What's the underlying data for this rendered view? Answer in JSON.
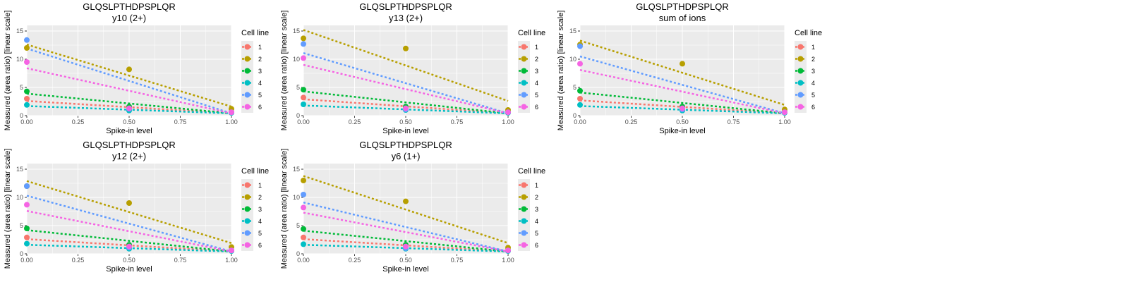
{
  "colors": {
    "1": "#F8766D",
    "2": "#B79F00",
    "3": "#00BA38",
    "4": "#00BFC4",
    "5": "#619CFF",
    "6": "#F564E3",
    "panel_background": "#EBEBEB",
    "grid": "#FFFFFF"
  },
  "chart_data": [
    {
      "type": "scatter",
      "title": "GLQSLPTHDPSPLQR",
      "subtitle": "y10 (2+)",
      "xlabel": "Spike-in level",
      "ylabel": "Measured (area ratio) [linear scale]",
      "xlim": [
        0,
        1
      ],
      "ylim": [
        0,
        16
      ],
      "xticks": [
        "0.00",
        "0.25",
        "0.50",
        "0.75",
        "1.00"
      ],
      "yticks": [
        "0",
        "5",
        "10",
        "15"
      ],
      "legend_title": "Cell line",
      "legend_position": "right",
      "series": [
        {
          "name": "1",
          "points": [
            [
              0,
              3.0
            ],
            [
              0.5,
              1.3
            ],
            [
              1,
              0.6
            ]
          ],
          "fit": [
            2.6,
            0.4
          ]
        },
        {
          "name": "2",
          "points": [
            [
              0,
              12.0
            ],
            [
              0.5,
              8.2
            ],
            [
              1,
              1.2
            ]
          ],
          "fit": [
            12.6,
            1.6
          ]
        },
        {
          "name": "3",
          "points": [
            [
              0,
              4.3
            ],
            [
              0.5,
              1.6
            ],
            [
              1,
              0.6
            ]
          ],
          "fit": [
            3.9,
            0.4
          ]
        },
        {
          "name": "4",
          "points": [
            [
              0,
              1.9
            ],
            [
              0.5,
              0.9
            ],
            [
              1,
              0.5
            ]
          ],
          "fit": [
            1.7,
            0.4
          ]
        },
        {
          "name": "5",
          "points": [
            [
              0,
              13.4
            ],
            [
              0.5,
              1.2
            ],
            [
              1,
              0.6
            ]
          ],
          "fit": [
            11.9,
            0.4
          ]
        },
        {
          "name": "6",
          "points": [
            [
              0,
              9.5
            ],
            [
              0.5,
              1.3
            ],
            [
              1,
              0.6
            ]
          ],
          "fit": [
            8.4,
            0.4
          ]
        }
      ]
    },
    {
      "type": "scatter",
      "title": "GLQSLPTHDPSPLQR",
      "subtitle": "y13 (2+)",
      "xlabel": "Spike-in level",
      "ylabel": "Measured (area ratio) [linear scale]",
      "xlim": [
        0,
        1
      ],
      "ylim": [
        0,
        16
      ],
      "xticks": [
        "0.00",
        "0.25",
        "0.50",
        "0.75",
        "1.00"
      ],
      "yticks": [
        "0",
        "5",
        "10",
        "15"
      ],
      "legend_title": "Cell line",
      "legend_position": "right",
      "series": [
        {
          "name": "1",
          "points": [
            [
              0,
              3.2
            ],
            [
              0.5,
              1.4
            ],
            [
              1,
              0.6
            ]
          ],
          "fit": [
            2.9,
            0.4
          ]
        },
        {
          "name": "2",
          "points": [
            [
              0,
              13.7
            ],
            [
              0.5,
              11.9
            ],
            [
              1,
              1.0
            ]
          ],
          "fit": [
            15.2,
            2.6
          ]
        },
        {
          "name": "3",
          "points": [
            [
              0,
              4.6
            ],
            [
              0.5,
              1.6
            ],
            [
              1,
              0.6
            ]
          ],
          "fit": [
            4.3,
            0.4
          ]
        },
        {
          "name": "4",
          "points": [
            [
              0,
              2.0
            ],
            [
              0.5,
              1.0
            ],
            [
              1,
              0.5
            ]
          ],
          "fit": [
            1.8,
            0.4
          ]
        },
        {
          "name": "5",
          "points": [
            [
              0,
              12.7
            ],
            [
              0.5,
              1.1
            ],
            [
              1,
              0.6
            ]
          ],
          "fit": [
            11.1,
            0.4
          ]
        },
        {
          "name": "6",
          "points": [
            [
              0,
              10.2
            ],
            [
              0.5,
              1.3
            ],
            [
              1,
              0.6
            ]
          ],
          "fit": [
            9.0,
            0.4
          ]
        }
      ]
    },
    {
      "type": "scatter",
      "title": "GLQSLPTHDPSPLQR",
      "subtitle": "sum of ions",
      "xlabel": "Spike-in level",
      "ylabel": "Measured (area ratio) [linear scale]",
      "xlim": [
        0,
        1
      ],
      "ylim": [
        0,
        16
      ],
      "xticks": [
        "0.00",
        "0.25",
        "0.50",
        "0.75",
        "1.00"
      ],
      "yticks": [
        "0",
        "5",
        "10",
        "15"
      ],
      "legend_title": "Cell line",
      "legend_position": "right",
      "series": [
        {
          "name": "1",
          "points": [
            [
              0,
              3.0
            ],
            [
              0.5,
              1.3
            ],
            [
              1,
              0.6
            ]
          ],
          "fit": [
            2.7,
            0.4
          ]
        },
        {
          "name": "2",
          "points": [
            [
              0,
              12.6
            ],
            [
              0.5,
              9.2
            ],
            [
              1,
              1.1
            ]
          ],
          "fit": [
            13.3,
            1.9
          ]
        },
        {
          "name": "3",
          "points": [
            [
              0,
              4.4
            ],
            [
              0.5,
              1.6
            ],
            [
              1,
              0.6
            ]
          ],
          "fit": [
            4.1,
            0.4
          ]
        },
        {
          "name": "4",
          "points": [
            [
              0,
              1.9
            ],
            [
              0.5,
              0.9
            ],
            [
              1,
              0.5
            ]
          ],
          "fit": [
            1.7,
            0.4
          ]
        },
        {
          "name": "5",
          "points": [
            [
              0,
              12.3
            ],
            [
              0.5,
              1.1
            ],
            [
              1,
              0.6
            ]
          ],
          "fit": [
            10.5,
            0.4
          ]
        },
        {
          "name": "6",
          "points": [
            [
              0,
              9.2
            ],
            [
              0.5,
              1.3
            ],
            [
              1,
              0.6
            ]
          ],
          "fit": [
            8.1,
            0.4
          ]
        }
      ]
    },
    {
      "type": "scatter",
      "title": "GLQSLPTHDPSPLQR",
      "subtitle": "y12 (2+)",
      "xlabel": "Spike-in level",
      "ylabel": "Measured (area ratio) [linear scale]",
      "xlim": [
        0,
        1
      ],
      "ylim": [
        0,
        16
      ],
      "xticks": [
        "0.00",
        "0.25",
        "0.50",
        "0.75",
        "1.00"
      ],
      "yticks": [
        "0",
        "5",
        "10",
        "15"
      ],
      "legend_title": "Cell line",
      "legend_position": "right",
      "series": [
        {
          "name": "1",
          "points": [
            [
              0,
              2.9
            ],
            [
              0.5,
              1.3
            ],
            [
              1,
              0.6
            ]
          ],
          "fit": [
            2.6,
            0.4
          ]
        },
        {
          "name": "2",
          "points": [
            [
              0,
              12.0
            ],
            [
              0.5,
              9.0
            ],
            [
              1,
              1.2
            ]
          ],
          "fit": [
            12.9,
            1.9
          ]
        },
        {
          "name": "3",
          "points": [
            [
              0,
              4.5
            ],
            [
              0.5,
              1.6
            ],
            [
              1,
              0.6
            ]
          ],
          "fit": [
            4.2,
            0.4
          ]
        },
        {
          "name": "4",
          "points": [
            [
              0,
              1.8
            ],
            [
              0.5,
              0.9
            ],
            [
              1,
              0.5
            ]
          ],
          "fit": [
            1.6,
            0.4
          ]
        },
        {
          "name": "5",
          "points": [
            [
              0,
              12.0
            ],
            [
              0.5,
              1.1
            ],
            [
              1,
              0.6
            ]
          ],
          "fit": [
            10.3,
            0.4
          ]
        },
        {
          "name": "6",
          "points": [
            [
              0,
              8.7
            ],
            [
              0.5,
              1.3
            ],
            [
              1,
              0.6
            ]
          ],
          "fit": [
            7.6,
            0.4
          ]
        }
      ]
    },
    {
      "type": "scatter",
      "title": "GLQSLPTHDPSPLQR",
      "subtitle": "y6 (1+)",
      "xlabel": "Spike-in level",
      "ylabel": "Measured (area ratio) [linear scale]",
      "xlim": [
        0,
        1
      ],
      "ylim": [
        0,
        16
      ],
      "xticks": [
        "0.00",
        "0.25",
        "0.50",
        "0.75",
        "1.00"
      ],
      "yticks": [
        "0",
        "5",
        "10",
        "15"
      ],
      "legend_title": "Cell line",
      "legend_position": "right",
      "series": [
        {
          "name": "1",
          "points": [
            [
              0,
              2.9
            ],
            [
              0.5,
              1.3
            ],
            [
              1,
              0.6
            ]
          ],
          "fit": [
            2.6,
            0.4
          ]
        },
        {
          "name": "2",
          "points": [
            [
              0,
              13.0
            ],
            [
              0.5,
              9.3
            ],
            [
              1,
              1.1
            ]
          ],
          "fit": [
            13.8,
            1.9
          ]
        },
        {
          "name": "3",
          "points": [
            [
              0,
              4.4
            ],
            [
              0.5,
              1.6
            ],
            [
              1,
              0.6
            ]
          ],
          "fit": [
            4.1,
            0.4
          ]
        },
        {
          "name": "4",
          "points": [
            [
              0,
              1.7
            ],
            [
              0.5,
              0.9
            ],
            [
              1,
              0.5
            ]
          ],
          "fit": [
            1.6,
            0.4
          ]
        },
        {
          "name": "5",
          "points": [
            [
              0,
              10.5
            ],
            [
              0.5,
              1.0
            ],
            [
              1,
              0.6
            ]
          ],
          "fit": [
            9.1,
            0.4
          ]
        },
        {
          "name": "6",
          "points": [
            [
              0,
              8.2
            ],
            [
              0.5,
              1.3
            ],
            [
              1,
              0.6
            ]
          ],
          "fit": [
            7.3,
            0.4
          ]
        }
      ]
    }
  ]
}
